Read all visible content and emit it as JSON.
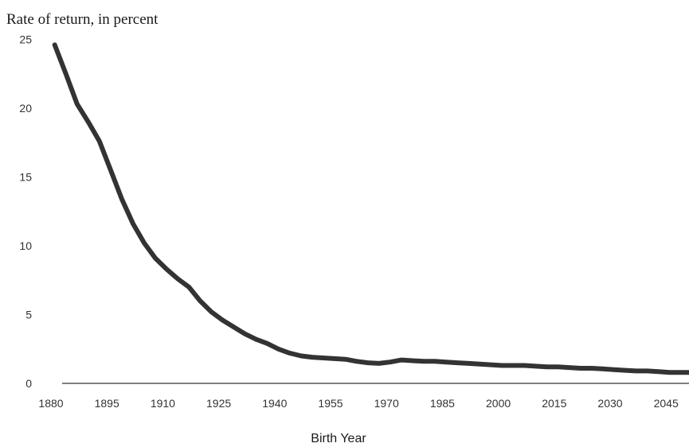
{
  "chart_data": {
    "type": "line",
    "title": "",
    "ylabel": "Rate of return, in percent",
    "xlabel": "Birth Year",
    "xlim": [
      1880,
      2055
    ],
    "ylim": [
      0,
      25
    ],
    "x_ticks": [
      "1880",
      "1895",
      "1910",
      "1925",
      "1940",
      "1955",
      "1970",
      "1985",
      "2000",
      "2015",
      "2030",
      "2045"
    ],
    "y_ticks": [
      "0",
      "5",
      "10",
      "15",
      "20",
      "25"
    ],
    "grid": false,
    "series": [
      {
        "color": "#333333",
        "x": [
          1881,
          1884,
          1887,
          1890,
          1893,
          1896,
          1899,
          1902,
          1905,
          1908,
          1911,
          1914,
          1917,
          1920,
          1923,
          1926,
          1929,
          1932,
          1935,
          1938,
          1941,
          1944,
          1947,
          1950,
          1953,
          1956,
          1959,
          1962,
          1965,
          1968,
          1971,
          1974,
          1977,
          1980,
          1983,
          1986,
          1989,
          1992,
          1995,
          1998,
          2001,
          2004,
          2007,
          2010,
          2013,
          2016,
          2019,
          2022,
          2025,
          2028,
          2031,
          2034,
          2037,
          2040,
          2043,
          2046,
          2049,
          2052,
          2055
        ],
        "values": [
          24.6,
          22.5,
          20.3,
          19.0,
          17.6,
          15.5,
          13.4,
          11.6,
          10.2,
          9.1,
          8.3,
          7.6,
          7.0,
          6.0,
          5.2,
          4.6,
          4.1,
          3.6,
          3.2,
          2.9,
          2.5,
          2.2,
          2.0,
          1.9,
          1.85,
          1.8,
          1.75,
          1.6,
          1.5,
          1.45,
          1.55,
          1.7,
          1.65,
          1.6,
          1.6,
          1.55,
          1.5,
          1.45,
          1.4,
          1.35,
          1.3,
          1.3,
          1.3,
          1.25,
          1.2,
          1.2,
          1.15,
          1.1,
          1.1,
          1.05,
          1.0,
          0.95,
          0.9,
          0.9,
          0.85,
          0.8,
          0.8,
          0.8,
          0.8
        ]
      }
    ]
  }
}
